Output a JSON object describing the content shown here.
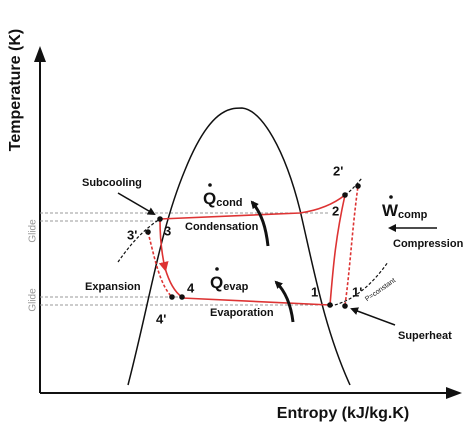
{
  "axes": {
    "y_label": "Temperature (K)",
    "x_label": "Entropy (kJ/kg.K)"
  },
  "glide_labels": [
    "Glide",
    "Glide"
  ],
  "annotations": {
    "subcooling": "Subcooling",
    "condensation": "Condensation",
    "compression": "Compression",
    "expansion": "Expansion",
    "evaporation": "Evaporation",
    "superheat": "Superheat",
    "p_constant": "P=constant"
  },
  "heat": {
    "q_cond": {
      "symbol": "Q",
      "subscript": "cond"
    },
    "q_evap": {
      "symbol": "Q",
      "subscript": "evap"
    },
    "w_comp": {
      "symbol": "W",
      "subscript": "comp"
    }
  },
  "points": [
    "1",
    "1'",
    "2",
    "2'",
    "3",
    "3'",
    "4",
    "4'"
  ]
}
